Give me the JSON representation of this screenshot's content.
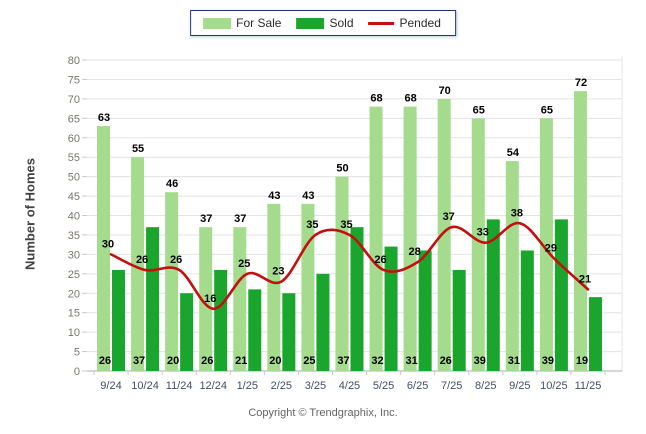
{
  "chart_data": {
    "type": "bar",
    "categories": [
      "9/24",
      "10/24",
      "11/24",
      "12/24",
      "1/25",
      "2/25",
      "3/25",
      "4/25",
      "5/25",
      "6/25",
      "7/25",
      "8/25",
      "9/25",
      "10/25",
      "11/25"
    ],
    "series": [
      {
        "name": "For Sale",
        "type": "bar",
        "color": "#A4DB8C",
        "values": [
          63,
          55,
          46,
          37,
          37,
          43,
          43,
          50,
          68,
          68,
          70,
          65,
          54,
          65,
          72
        ]
      },
      {
        "name": "Sold",
        "type": "bar",
        "color": "#1AA62C",
        "values": [
          26,
          37,
          20,
          26,
          21,
          20,
          25,
          37,
          32,
          31,
          26,
          39,
          31,
          39,
          19
        ]
      },
      {
        "name": "Pended",
        "type": "line",
        "color": "#C40F0F",
        "values": [
          30,
          26,
          26,
          16,
          25,
          23,
          35,
          35,
          26,
          28,
          37,
          33,
          38,
          29,
          21
        ]
      }
    ],
    "ylabel": "Number of Homes",
    "ylim": [
      0,
      80
    ],
    "ytick_step": 5,
    "grid": true,
    "legend_position": "top-center",
    "legend_border_color": "#1F396B",
    "gridline_color": "#e3e3e3",
    "axis_line_color": "#adadad",
    "ytick_label_color": "#78756e",
    "xtick_label_color": "#3f4d63",
    "data_label_color": "#000000"
  },
  "footer": {
    "copyright": "Copyright © Trendgraphix, Inc."
  }
}
